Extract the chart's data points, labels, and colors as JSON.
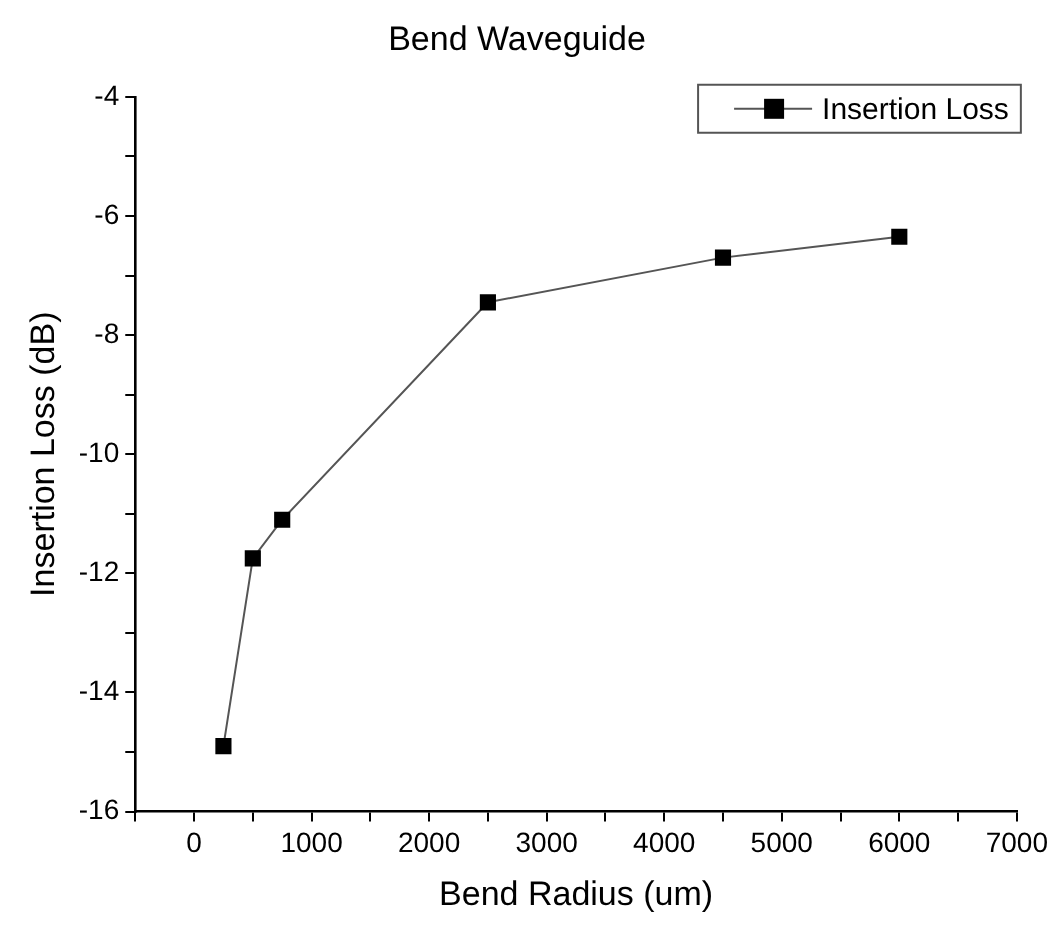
{
  "chart_data": {
    "type": "line",
    "title": "Bend Waveguide",
    "xlabel": "Bend Radius (um)",
    "ylabel": "Insertion Loss (dB)",
    "x": [
      250,
      500,
      750,
      2500,
      4500,
      6000
    ],
    "series": [
      {
        "name": "Insertion Loss",
        "color": "#000000",
        "values": [
          -14.9,
          -11.75,
          -11.1,
          -7.45,
          -6.7,
          -6.35
        ]
      }
    ],
    "xlim": [
      -500,
      7000
    ],
    "xticks": [
      {
        "value": -500,
        "label": null
      },
      0,
      {
        "value": 500,
        "label": null
      },
      1000,
      {
        "value": 1500,
        "label": null
      },
      2000,
      {
        "value": 2500,
        "label": null
      },
      3000,
      {
        "value": 3500,
        "label": null
      },
      4000,
      {
        "value": 4500,
        "label": null
      },
      5000,
      {
        "value": 5500,
        "label": null
      },
      6000,
      {
        "value": 6500,
        "label": null
      },
      7000
    ],
    "ylim": [
      -16,
      -4
    ],
    "yticks": [
      -16,
      {
        "value": -15,
        "label": null
      },
      -14,
      {
        "value": -13,
        "label": null
      },
      -12,
      {
        "value": -11,
        "label": null
      },
      -10,
      {
        "value": -9,
        "label": null
      },
      -8,
      {
        "value": -7,
        "label": null
      },
      -6,
      {
        "value": -5,
        "label": null
      },
      -4
    ],
    "grid": false,
    "legend": "top right",
    "marker": "square",
    "line_style": "solid"
  }
}
